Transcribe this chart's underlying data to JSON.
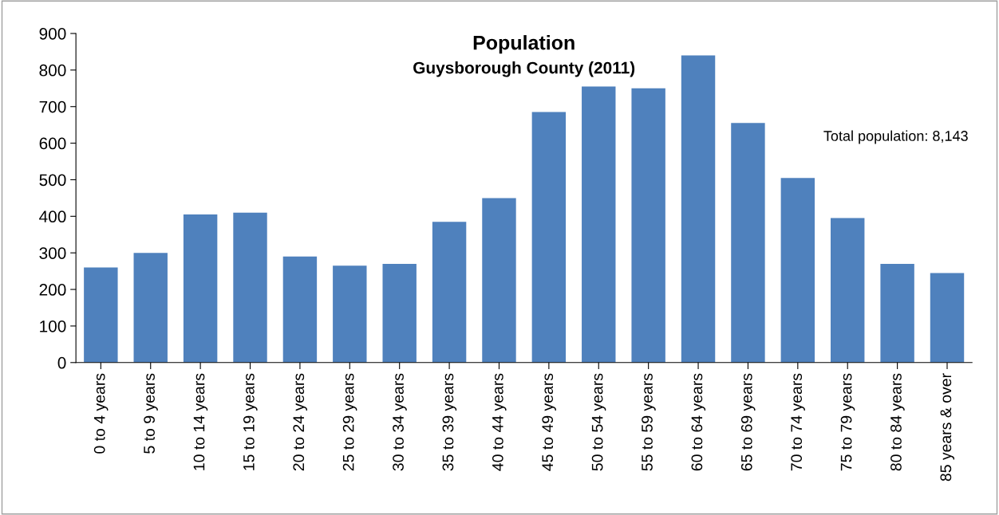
{
  "chart_data": {
    "type": "bar",
    "title": "Population",
    "subtitle": "Guysborough County (2011)",
    "categories": [
      "0 to 4 years",
      "5 to 9 years",
      "10 to 14 years",
      "15 to 19 years",
      "20 to 24 years",
      "25 to 29 years",
      "30 to 34 years",
      "35 to 39 years",
      "40 to 44 years",
      "45 to 49 years",
      "50 to 54 years",
      "55 to 59 years",
      "60 to 64 years",
      "65 to 69 years",
      "70 to 74 years",
      "75 to 79 years",
      "80 to 84 years",
      "85 years & over"
    ],
    "values": [
      260,
      300,
      405,
      410,
      290,
      265,
      270,
      385,
      450,
      685,
      755,
      750,
      840,
      655,
      505,
      395,
      270,
      245
    ],
    "color": "#4f81bd",
    "ylim": [
      0,
      900
    ],
    "yticks": [
      0,
      100,
      200,
      300,
      400,
      500,
      600,
      700,
      800,
      900
    ],
    "grid": false,
    "annotations": [
      "Total population: 8,143"
    ]
  }
}
